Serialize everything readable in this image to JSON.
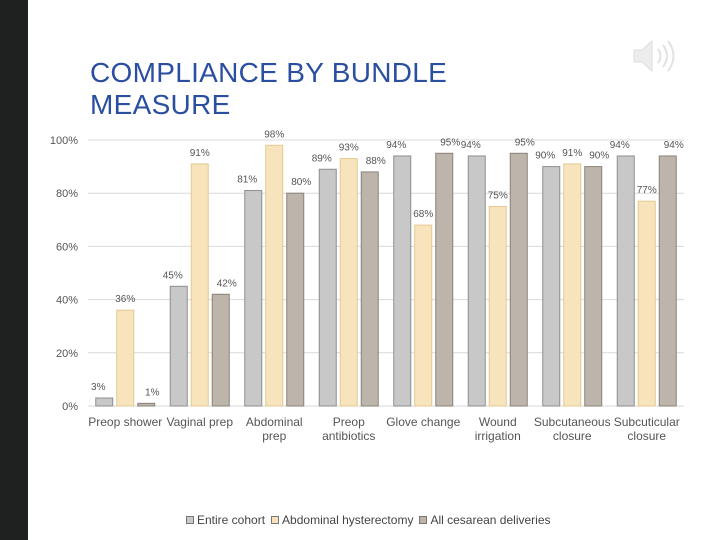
{
  "slide": {
    "title": "COMPLIANCE BY BUNDLE MEASURE"
  },
  "icons": {
    "speaker": "speaker-icon"
  },
  "colors": {
    "sidebar": "#1f2020",
    "title": "#2a4ea0",
    "gridline": "#d9d9d9",
    "series": [
      "#c8c8c8",
      "#f7e4bd",
      "#bdb5ab"
    ],
    "series_stroke": [
      "#8e8e8e",
      "#e4c98f",
      "#8a8278"
    ]
  },
  "chart_data": {
    "type": "bar",
    "categories": [
      [
        "Preop shower"
      ],
      [
        "Vaginal prep"
      ],
      [
        "Abdominal",
        "prep"
      ],
      [
        "Preop",
        "antibiotics"
      ],
      [
        "Glove change"
      ],
      [
        "Wound",
        "irrigation"
      ],
      [
        "Subcutaneous",
        "closure"
      ],
      [
        "Subcuticular",
        "closure"
      ]
    ],
    "series": [
      {
        "name": "Entire cohort",
        "values": [
          3,
          45,
          81,
          89,
          94,
          94,
          90,
          94
        ]
      },
      {
        "name": "Abdominal hysterectomy",
        "values": [
          36,
          91,
          98,
          93,
          68,
          75,
          91,
          77
        ]
      },
      {
        "name": "All cesarean deliveries",
        "values": [
          1,
          42,
          80,
          88,
          95,
          95,
          90,
          94
        ]
      }
    ],
    "ylim": [
      0,
      100
    ],
    "yticks": [
      "0%",
      "20%",
      "40%",
      "60%",
      "80%",
      "100%"
    ],
    "value_suffix": "%",
    "grid": true,
    "legend": "bottom"
  }
}
